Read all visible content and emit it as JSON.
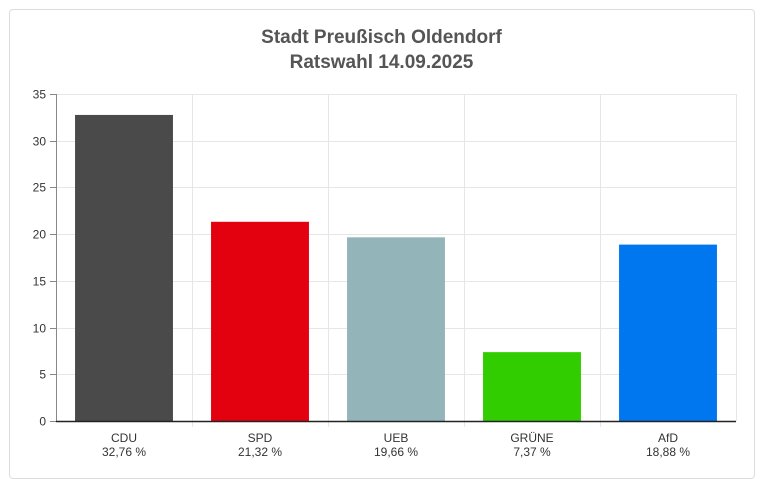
{
  "chart_data": {
    "type": "bar",
    "title": "Stadt Preußisch Oldendorf",
    "subtitle": "Ratswahl 14.09.2025",
    "categories": [
      "CDU",
      "SPD",
      "UEB",
      "GRÜNE",
      "AfD"
    ],
    "value_labels": [
      "32,76 %",
      "21,32 %",
      "19,66 %",
      "7,37 %",
      "18,88 %"
    ],
    "values": [
      32.76,
      21.32,
      19.66,
      7.37,
      18.88
    ],
    "colors": [
      "#4a4a4a",
      "#e3000f",
      "#93b5b9",
      "#32cd00",
      "#0077ee"
    ],
    "ylim": [
      0,
      35
    ],
    "yticks": [
      0,
      5,
      10,
      15,
      20,
      25,
      30,
      35
    ],
    "grid": true
  }
}
